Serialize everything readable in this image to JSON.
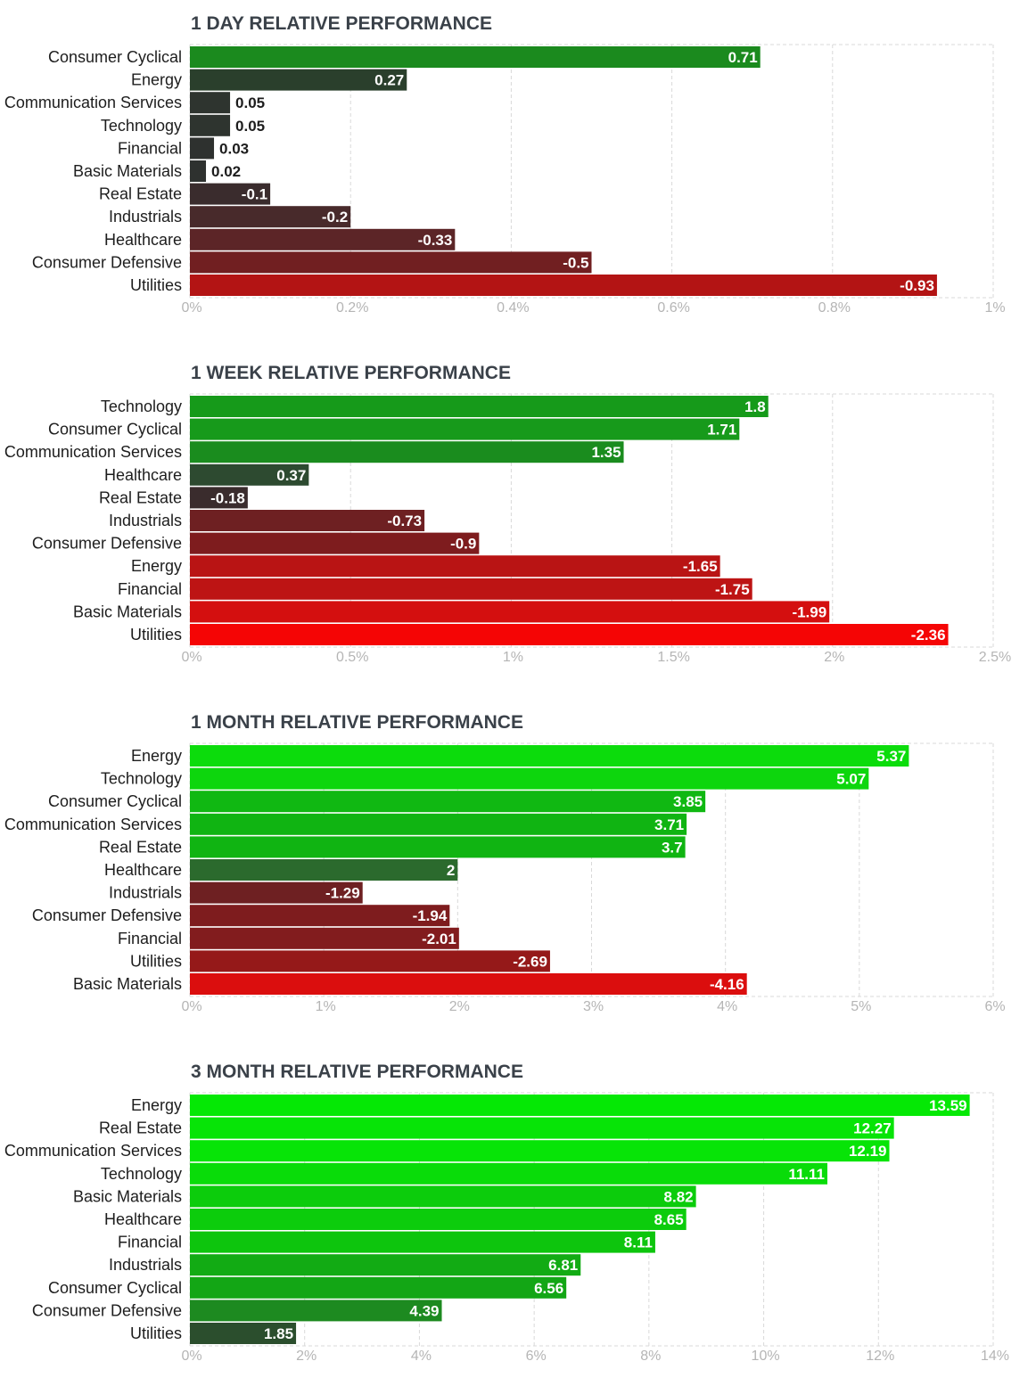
{
  "chart_data": [
    {
      "type": "bar",
      "orientation": "horizontal",
      "title": "1 DAY RELATIVE PERFORMANCE",
      "categories": [
        "Consumer Cyclical",
        "Energy",
        "Communication Services",
        "Technology",
        "Financial",
        "Basic Materials",
        "Real Estate",
        "Industrials",
        "Healthcare",
        "Consumer Defensive",
        "Utilities"
      ],
      "values": [
        0.71,
        0.27,
        0.05,
        0.05,
        0.03,
        0.02,
        -0.1,
        -0.2,
        -0.33,
        -0.5,
        -0.93
      ],
      "value_labels": [
        "0.71",
        "0.27",
        "0.05",
        "0.05",
        "0.03",
        "0.02",
        "-0.1",
        "-0.2",
        "-0.33",
        "-0.5",
        "-0.93"
      ],
      "colors": [
        "#1b8a1e",
        "#2a3f2c",
        "#2e342f",
        "#2e342f",
        "#2e312f",
        "#2e312f",
        "#3a2c2d",
        "#482a2b",
        "#5c2527",
        "#711f21",
        "#b31414"
      ],
      "xlim": [
        0,
        1
      ],
      "ticks": [
        "0%",
        "0.2%",
        "0.4%",
        "0.6%",
        "0.8%",
        "1%"
      ],
      "xlabel": "",
      "ylabel": "",
      "grid": true
    },
    {
      "type": "bar",
      "orientation": "horizontal",
      "title": "1 WEEK RELATIVE PERFORMANCE",
      "categories": [
        "Technology",
        "Consumer Cyclical",
        "Communication Services",
        "Healthcare",
        "Real Estate",
        "Industrials",
        "Consumer Defensive",
        "Energy",
        "Financial",
        "Basic Materials",
        "Utilities"
      ],
      "values": [
        1.8,
        1.71,
        1.35,
        0.37,
        -0.18,
        -0.73,
        -0.9,
        -1.65,
        -1.75,
        -1.99,
        -2.36
      ],
      "value_labels": [
        "1.8",
        "1.71",
        "1.35",
        "0.37",
        "-0.18",
        "-0.73",
        "-0.9",
        "-1.65",
        "-1.75",
        "-1.99",
        "-2.36"
      ],
      "colors": [
        "#169a1a",
        "#179a1b",
        "#1a8c1e",
        "#2d4a30",
        "#3a2c2d",
        "#6e2022",
        "#7e1c1e",
        "#b91414",
        "#bd1414",
        "#d40f0f",
        "#f50505"
      ],
      "xlim": [
        0,
        2.5
      ],
      "ticks": [
        "0%",
        "0.5%",
        "1%",
        "1.5%",
        "2%",
        "2.5%"
      ],
      "xlabel": "",
      "ylabel": "",
      "grid": true
    },
    {
      "type": "bar",
      "orientation": "horizontal",
      "title": "1 MONTH RELATIVE PERFORMANCE",
      "categories": [
        "Energy",
        "Technology",
        "Consumer Cyclical",
        "Communication Services",
        "Real Estate",
        "Healthcare",
        "Industrials",
        "Consumer Defensive",
        "Financial",
        "Utilities",
        "Basic Materials"
      ],
      "values": [
        5.37,
        5.07,
        3.85,
        3.71,
        3.7,
        2,
        -1.29,
        -1.94,
        -2.01,
        -2.69,
        -4.16
      ],
      "value_labels": [
        "5.37",
        "5.07",
        "3.85",
        "3.71",
        "3.7",
        "2",
        "-1.29",
        "-1.94",
        "-2.01",
        "-2.69",
        "-4.16"
      ],
      "colors": [
        "#0cdc0c",
        "#0dd60d",
        "#10b812",
        "#10b412",
        "#10b412",
        "#2b6a2d",
        "#6e2022",
        "#7e1c1e",
        "#821c1e",
        "#951919",
        "#db0e0e"
      ],
      "xlim": [
        0,
        6
      ],
      "ticks": [
        "0%",
        "1%",
        "2%",
        "3%",
        "4%",
        "5%",
        "6%"
      ],
      "xlabel": "",
      "ylabel": "",
      "grid": true
    },
    {
      "type": "bar",
      "orientation": "horizontal",
      "title": "3 MONTH RELATIVE PERFORMANCE",
      "categories": [
        "Energy",
        "Real Estate",
        "Communication Services",
        "Technology",
        "Basic Materials",
        "Healthcare",
        "Financial",
        "Industrials",
        "Consumer Cyclical",
        "Consumer Defensive",
        "Utilities"
      ],
      "values": [
        13.59,
        12.27,
        12.19,
        11.11,
        8.82,
        8.65,
        8.11,
        6.81,
        6.56,
        4.39,
        1.85
      ],
      "value_labels": [
        "13.59",
        "12.27",
        "12.19",
        "11.11",
        "8.82",
        "8.65",
        "8.11",
        "6.81",
        "6.56",
        "4.39",
        "1.85"
      ],
      "colors": [
        "#05e805",
        "#07e407",
        "#07e407",
        "#09dc09",
        "#0ccc0c",
        "#0ccc0c",
        "#0dc50d",
        "#12ab14",
        "#13a615",
        "#1d8a20",
        "#2b4e2d"
      ],
      "xlim": [
        0,
        14
      ],
      "ticks": [
        "0%",
        "2%",
        "4%",
        "6%",
        "8%",
        "10%",
        "12%",
        "14%"
      ],
      "xlabel": "",
      "ylabel": "",
      "grid": true
    }
  ]
}
